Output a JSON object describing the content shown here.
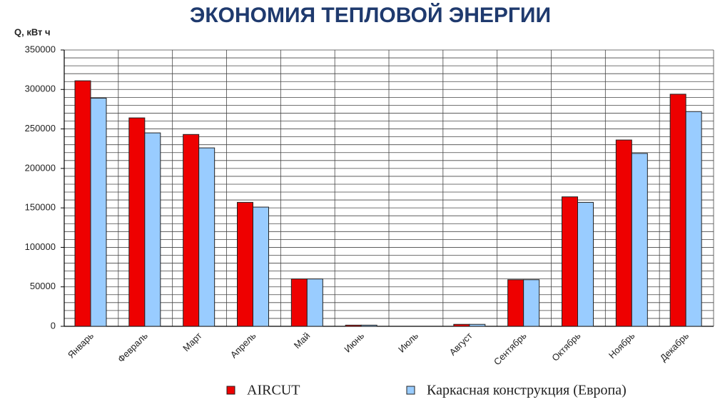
{
  "chart_data": {
    "type": "bar",
    "title": "ЭКОНОМИЯ ТЕПЛОВОЙ ЭНЕРГИИ",
    "y_label": "Q, кВт ч",
    "categories": [
      "Январь",
      "Февраль",
      "Март",
      "Апрель",
      "Май",
      "Июнь",
      "Июль",
      "Август",
      "Сентябрь",
      "Октябрь",
      "Ноябрь",
      "Декабрь"
    ],
    "series": [
      {
        "name": "AIRCUT",
        "color": "#ee0000",
        "values": [
          311000,
          264000,
          243000,
          157000,
          60000,
          1500,
          0,
          2500,
          59000,
          164000,
          236000,
          294000
        ]
      },
      {
        "name": "Каркасная конструкция (Европа)",
        "color": "#99ccff",
        "values": [
          289000,
          245000,
          226000,
          151000,
          60000,
          1500,
          0,
          2500,
          59000,
          157000,
          219000,
          272000
        ]
      }
    ],
    "ylim": [
      0,
      350000
    ],
    "yticks": [
      0,
      50000,
      100000,
      150000,
      200000,
      250000,
      300000,
      350000
    ],
    "grid_lines": [
      0,
      10000,
      20000,
      30000,
      40000,
      50000,
      60000,
      70000,
      80000,
      90000,
      100000,
      110000,
      120000,
      130000,
      140000,
      150000,
      160000,
      170000,
      180000,
      190000,
      200000,
      210000,
      220000,
      230000,
      240000,
      250000,
      260000,
      270000,
      280000,
      290000,
      300000,
      310000,
      320000,
      330000,
      340000,
      350000
    ],
    "grid": true,
    "legend": "bottom"
  }
}
